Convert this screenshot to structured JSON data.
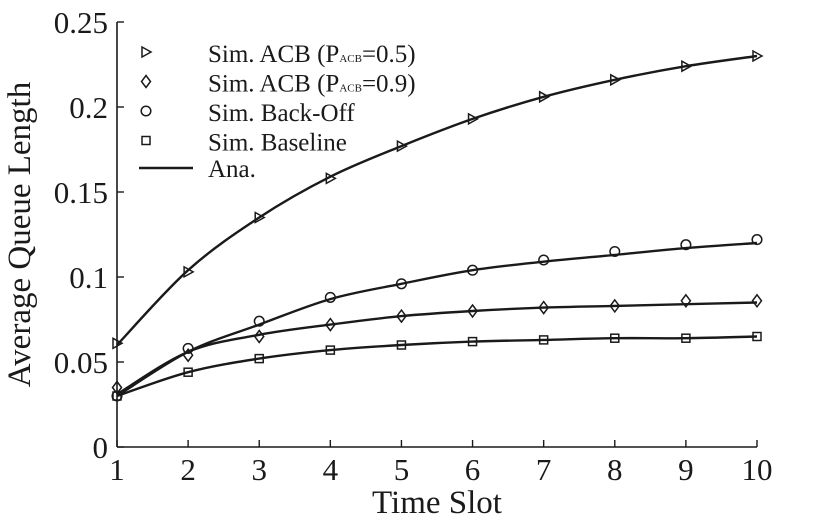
{
  "chart_data": {
    "type": "line",
    "xlabel": "Time Slot",
    "ylabel": "Average Queue Length",
    "xlim": [
      1,
      10
    ],
    "ylim": [
      0,
      0.25
    ],
    "x_ticks": [
      "1",
      "2",
      "3",
      "4",
      "5",
      "6",
      "7",
      "8",
      "9",
      "10"
    ],
    "y_ticks": [
      "0",
      "0.05",
      "0.1",
      "0.15",
      "0.2",
      "0.25"
    ],
    "grid": false,
    "legend_position": "top-left",
    "x": [
      1,
      2,
      3,
      4,
      5,
      6,
      7,
      8,
      9,
      10
    ],
    "series": [
      {
        "name": "Sim. ACB (P_ACB=0.5)",
        "legend_main": "Sim. ACB (P",
        "legend_sub": "ACB",
        "legend_tail": "=0.5)",
        "marker": "triangle-right",
        "values": [
          0.061,
          0.103,
          0.135,
          0.158,
          0.177,
          0.193,
          0.206,
          0.216,
          0.224,
          0.23
        ],
        "analytic": [
          0.06,
          0.104,
          0.135,
          0.159,
          0.177,
          0.193,
          0.206,
          0.216,
          0.224,
          0.23
        ]
      },
      {
        "name": "Sim. ACB (P_ACB=0.9)",
        "legend_main": "Sim. ACB (P",
        "legend_sub": "ACB",
        "legend_tail": "=0.9)",
        "marker": "diamond",
        "values": [
          0.035,
          0.054,
          0.065,
          0.072,
          0.077,
          0.08,
          0.082,
          0.083,
          0.086,
          0.086
        ],
        "analytic": [
          0.031,
          0.056,
          0.066,
          0.072,
          0.077,
          0.08,
          0.082,
          0.083,
          0.084,
          0.085
        ]
      },
      {
        "name": "Sim. Back-Off",
        "legend_main": "Sim. Back-Off",
        "legend_sub": "",
        "legend_tail": "",
        "marker": "circle",
        "values": [
          0.03,
          0.058,
          0.074,
          0.088,
          0.096,
          0.104,
          0.11,
          0.115,
          0.119,
          0.122
        ],
        "analytic": [
          0.03,
          0.056,
          0.072,
          0.087,
          0.096,
          0.104,
          0.109,
          0.113,
          0.117,
          0.12
        ]
      },
      {
        "name": "Sim. Baseline",
        "legend_main": "Sim. Baseline",
        "legend_sub": "",
        "legend_tail": "",
        "marker": "square",
        "values": [
          0.03,
          0.044,
          0.052,
          0.057,
          0.06,
          0.062,
          0.063,
          0.064,
          0.064,
          0.065
        ],
        "analytic": [
          0.03,
          0.044,
          0.052,
          0.057,
          0.06,
          0.062,
          0.063,
          0.064,
          0.064,
          0.065
        ]
      }
    ],
    "analytic_legend": "Ana."
  }
}
